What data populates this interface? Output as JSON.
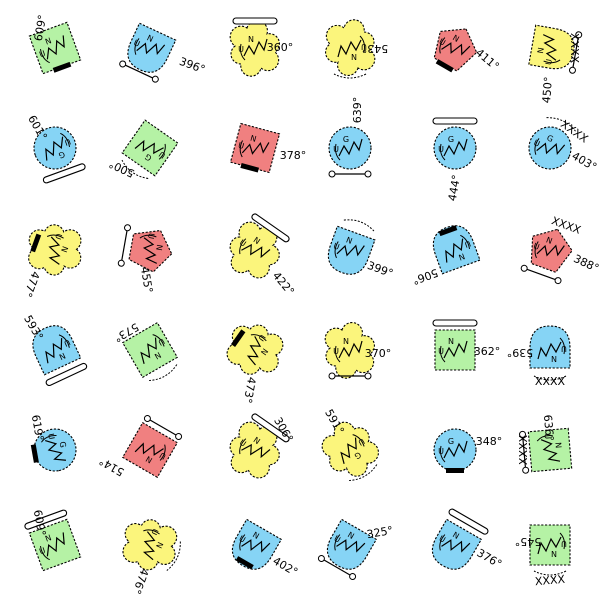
{
  "palette": {
    "green": "#b5f2a5",
    "blue": "#86d4f5",
    "yellow": "#fbf57c",
    "red": "#f08080"
  },
  "symbols": [
    {
      "shape": "rect",
      "color": "green",
      "label": "609°",
      "glyph": "N",
      "mark": "U"
    },
    {
      "shape": "drop",
      "color": "blue",
      "label": "396°",
      "glyph": "N",
      "mark": "U"
    },
    {
      "shape": "cloud",
      "color": "yellow",
      "label": "360°",
      "glyph": "N",
      "mark": "U"
    },
    {
      "shape": "cloud",
      "color": "yellow",
      "label": "543°",
      "glyph": "N",
      "mark": "U"
    },
    {
      "shape": "pent",
      "color": "red",
      "label": "411°",
      "glyph": "N",
      "mark": "U"
    },
    {
      "shape": "drop",
      "color": "yellow",
      "label": "450°",
      "glyph": "N",
      "mark": "U",
      "extra": "XXXX"
    },
    {
      "shape": "circle",
      "color": "blue",
      "label": "601°",
      "glyph": "G",
      "mark": "U"
    },
    {
      "shape": "rect",
      "color": "green",
      "label": "500°",
      "glyph": "G",
      "mark": "U"
    },
    {
      "shape": "rect",
      "color": "red",
      "label": "378°",
      "glyph": "N",
      "mark": "U"
    },
    {
      "shape": "circle",
      "color": "blue",
      "label": "639°",
      "glyph": "G",
      "mark": "U"
    },
    {
      "shape": "circle",
      "color": "blue",
      "label": "444°",
      "glyph": "G",
      "mark": "U"
    },
    {
      "shape": "circle",
      "color": "blue",
      "label": "403°",
      "glyph": "G",
      "mark": "U",
      "extra": "XXXX"
    },
    {
      "shape": "cloud",
      "color": "yellow",
      "label": "477°",
      "glyph": "N",
      "mark": "U"
    },
    {
      "shape": "pent",
      "color": "red",
      "label": "455°",
      "glyph": "N",
      "mark": "U"
    },
    {
      "shape": "cloud",
      "color": "yellow",
      "label": "422°",
      "glyph": "N",
      "mark": "U"
    },
    {
      "shape": "drop",
      "color": "blue",
      "label": "399°",
      "glyph": "N",
      "mark": "U"
    },
    {
      "shape": "drop",
      "color": "blue",
      "label": "506°",
      "glyph": "N",
      "mark": "U"
    },
    {
      "shape": "pent",
      "color": "red",
      "label": "388°",
      "glyph": "N",
      "mark": "U",
      "extra": "XXXX"
    },
    {
      "shape": "drop",
      "color": "blue",
      "label": "593°",
      "glyph": "N",
      "mark": "U"
    },
    {
      "shape": "rect",
      "color": "green",
      "label": "573°",
      "glyph": "N",
      "mark": "U"
    },
    {
      "shape": "cloud",
      "color": "yellow",
      "label": "473°",
      "glyph": "N",
      "mark": "U"
    },
    {
      "shape": "cloud",
      "color": "yellow",
      "label": "370°",
      "glyph": "N",
      "mark": "U"
    },
    {
      "shape": "rect",
      "color": "green",
      "label": "362°",
      "glyph": "N",
      "mark": "U"
    },
    {
      "shape": "drop",
      "color": "blue",
      "label": "539°",
      "glyph": "N",
      "mark": "U",
      "extra": "XXXX"
    },
    {
      "shape": "circle",
      "color": "blue",
      "label": "619°",
      "glyph": "G",
      "mark": "U"
    },
    {
      "shape": "rect",
      "color": "red",
      "label": "514°",
      "glyph": "N",
      "mark": "U"
    },
    {
      "shape": "cloud",
      "color": "yellow",
      "label": "306°",
      "glyph": "N",
      "mark": "U"
    },
    {
      "shape": "cloud",
      "color": "yellow",
      "label": "591°",
      "glyph": "G",
      "mark": "U"
    },
    {
      "shape": "circle",
      "color": "blue",
      "label": "348°",
      "glyph": "G",
      "mark": "U"
    },
    {
      "shape": "rect",
      "color": "green",
      "label": "636°",
      "glyph": "N",
      "mark": "U",
      "extra": "XXXX"
    },
    {
      "shape": "rect",
      "color": "green",
      "label": "609°",
      "glyph": "N",
      "mark": "U"
    },
    {
      "shape": "cloud",
      "color": "yellow",
      "label": "476°",
      "glyph": "N",
      "mark": "U"
    },
    {
      "shape": "drop",
      "color": "blue",
      "label": "402°",
      "glyph": "N",
      "mark": "U"
    },
    {
      "shape": "drop",
      "color": "blue",
      "label": "325°",
      "glyph": "N",
      "mark": "U"
    },
    {
      "shape": "drop",
      "color": "blue",
      "label": "376°",
      "glyph": "N",
      "mark": "U"
    },
    {
      "shape": "rect",
      "color": "green",
      "label": "545°",
      "glyph": "N",
      "mark": "U",
      "extra": "XXXX"
    }
  ]
}
